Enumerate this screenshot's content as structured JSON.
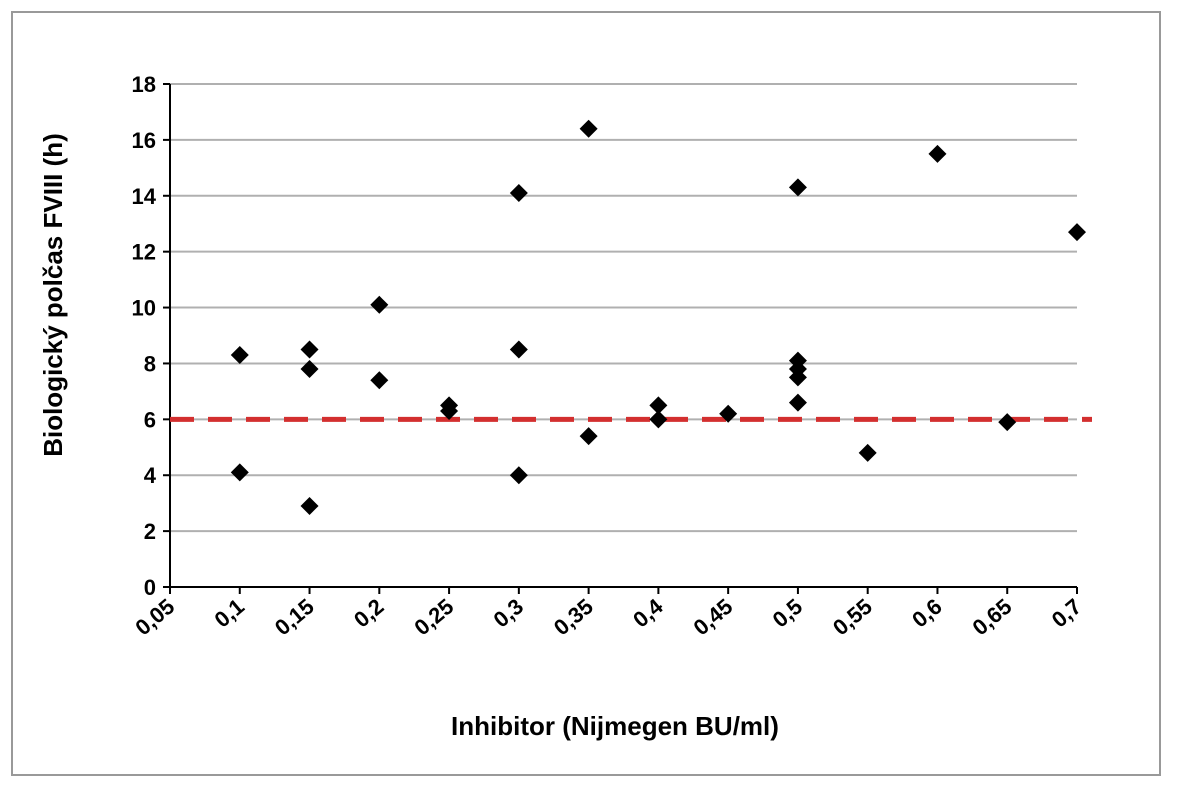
{
  "chart_data": {
    "type": "scatter",
    "xlabel": "Inhibitor (Nijmegen BU/ml)",
    "ylabel": "Biologický polčas FVIII (h)",
    "x": [
      0.1,
      0.1,
      0.15,
      0.15,
      0.15,
      0.2,
      0.2,
      0.25,
      0.25,
      0.3,
      0.3,
      0.3,
      0.35,
      0.35,
      0.4,
      0.4,
      0.45,
      0.5,
      0.5,
      0.5,
      0.5,
      0.5,
      0.55,
      0.6,
      0.65,
      0.7
    ],
    "values": [
      8.3,
      4.1,
      8.5,
      7.8,
      2.9,
      10.1,
      7.4,
      6.5,
      6.3,
      14.1,
      8.5,
      4.0,
      16.4,
      5.4,
      6.5,
      6.0,
      6.2,
      14.3,
      8.1,
      7.8,
      7.5,
      6.6,
      4.8,
      15.5,
      5.9,
      12.7
    ],
    "color": "#000000",
    "reference_line": 6,
    "reference_color": "#d32f2f",
    "xlim": [
      0.05,
      0.7
    ],
    "xticks": [
      {
        "value": 0.05,
        "label": "0,05"
      },
      {
        "value": 0.1,
        "label": "0,1"
      },
      {
        "value": 0.15,
        "label": "0,15"
      },
      {
        "value": 0.2,
        "label": "0,2"
      },
      {
        "value": 0.25,
        "label": "0,25"
      },
      {
        "value": 0.3,
        "label": "0,3"
      },
      {
        "value": 0.35,
        "label": "0,35"
      },
      {
        "value": 0.4,
        "label": "0,4"
      },
      {
        "value": 0.45,
        "label": "0,45"
      },
      {
        "value": 0.5,
        "label": "0,5"
      },
      {
        "value": 0.55,
        "label": "0,55"
      },
      {
        "value": 0.6,
        "label": "0,6"
      },
      {
        "value": 0.65,
        "label": "0,65"
      },
      {
        "value": 0.7,
        "label": "0,7"
      }
    ],
    "ylim": [
      0,
      18
    ],
    "yticks": [
      0,
      2,
      4,
      6,
      8,
      10,
      12,
      14,
      16,
      18
    ],
    "grid": true
  }
}
